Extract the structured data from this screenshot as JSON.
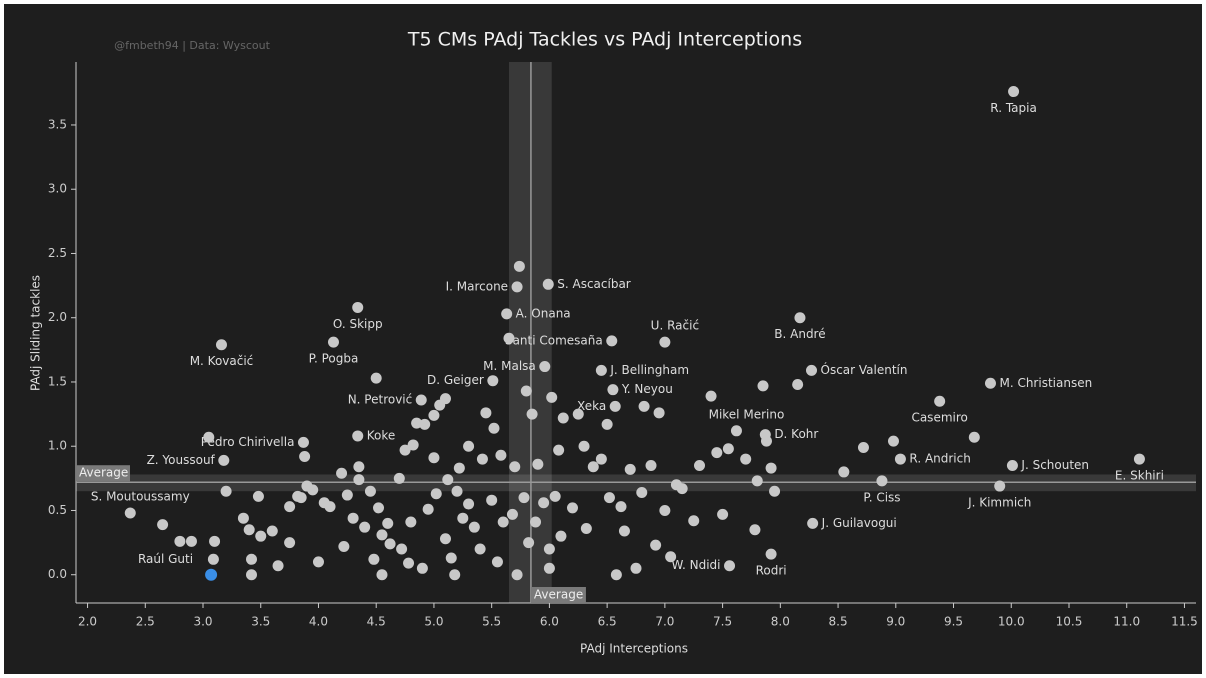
{
  "chart_data": {
    "type": "scatter",
    "title": "T5 CMs PAdj Tackles vs PAdj Interceptions",
    "subtitle": "@fmbeth94 | Data: Wyscout",
    "xlabel": "PAdj Interceptions",
    "ylabel": "PAdj Sliding tackles",
    "color": "#c8c8c8",
    "x": [
      10.02,
      5.72,
      5.99,
      5.63,
      4.34,
      4.13,
      3.16,
      7.0,
      8.17,
      6.54,
      5.96,
      6.45,
      8.27,
      9.82,
      6.55,
      5.51,
      6.57,
      7.62,
      9.38,
      4.89,
      3.87,
      4.34,
      7.87,
      3.18,
      9.04,
      10.01,
      11.11,
      8.88,
      9.9,
      2.37,
      8.28,
      7.56,
      7.92,
      2.65,
      2.8,
      2.9,
      3.05,
      3.1,
      3.09,
      3.2,
      3.35,
      3.4,
      3.42,
      3.42,
      3.48,
      3.5,
      3.6,
      3.65,
      3.75,
      3.75,
      3.82,
      3.85,
      3.88,
      3.9,
      3.95,
      4.0,
      4.05,
      4.1,
      4.2,
      4.22,
      4.25,
      4.3,
      4.35,
      4.35,
      4.4,
      4.45,
      4.5,
      4.48,
      4.52,
      4.55,
      4.55,
      4.6,
      4.62,
      4.7,
      4.72,
      4.75,
      4.78,
      4.8,
      4.82,
      4.85,
      4.9,
      4.92,
      4.95,
      5.0,
      5.0,
      5.02,
      5.05,
      5.1,
      5.1,
      5.12,
      5.15,
      5.18,
      5.2,
      5.22,
      5.25,
      5.3,
      5.3,
      5.35,
      5.4,
      5.42,
      5.45,
      5.5,
      5.52,
      5.55,
      5.58,
      5.6,
      5.65,
      5.68,
      5.7,
      5.72,
      5.74,
      5.78,
      5.8,
      5.82,
      5.85,
      5.88,
      5.9,
      5.95,
      6.0,
      6.0,
      6.02,
      6.05,
      6.08,
      6.1,
      6.12,
      6.2,
      6.25,
      6.3,
      6.32,
      6.38,
      6.45,
      6.5,
      6.52,
      6.58,
      6.62,
      6.65,
      6.7,
      6.75,
      6.8,
      6.82,
      6.88,
      6.92,
      6.95,
      7.0,
      7.05,
      7.1,
      7.15,
      7.25,
      7.3,
      7.4,
      7.45,
      7.5,
      7.55,
      7.7,
      7.78,
      7.8,
      7.85,
      7.88,
      7.92,
      7.95,
      8.15,
      8.55,
      8.72,
      8.98,
      9.68
    ],
    "values": [
      3.76,
      2.24,
      2.26,
      2.03,
      2.08,
      1.81,
      1.79,
      1.81,
      2.0,
      1.82,
      1.62,
      1.59,
      1.59,
      1.49,
      1.44,
      1.51,
      1.31,
      1.12,
      1.35,
      1.36,
      1.03,
      1.08,
      1.09,
      0.89,
      0.9,
      0.85,
      0.9,
      0.73,
      0.69,
      0.48,
      0.4,
      0.07,
      0.16,
      0.39,
      0.26,
      0.26,
      1.07,
      0.26,
      0.12,
      0.65,
      0.44,
      0.35,
      0.12,
      0.0,
      0.61,
      0.3,
      0.34,
      0.07,
      0.53,
      0.25,
      0.61,
      0.6,
      0.92,
      0.69,
      0.66,
      0.1,
      0.56,
      0.53,
      0.79,
      0.22,
      0.62,
      0.44,
      0.84,
      0.74,
      0.37,
      0.65,
      1.53,
      0.12,
      0.52,
      0.31,
      0.0,
      0.4,
      0.24,
      0.75,
      0.2,
      0.97,
      0.09,
      0.41,
      1.01,
      1.18,
      0.05,
      1.17,
      0.51,
      0.91,
      1.24,
      0.63,
      1.32,
      1.37,
      0.28,
      0.74,
      0.13,
      0.0,
      0.65,
      0.83,
      0.44,
      0.55,
      1.0,
      0.37,
      0.2,
      0.9,
      1.26,
      0.58,
      1.14,
      0.1,
      0.93,
      0.41,
      1.84,
      0.47,
      0.84,
      0.0,
      2.4,
      0.6,
      1.43,
      0.25,
      1.25,
      0.41,
      0.86,
      0.56,
      0.2,
      0.05,
      1.38,
      0.61,
      0.97,
      0.3,
      1.22,
      0.52,
      1.25,
      1.0,
      0.36,
      0.84,
      0.9,
      1.17,
      0.6,
      0.0,
      0.53,
      0.34,
      0.82,
      0.05,
      0.64,
      1.31,
      0.85,
      0.23,
      1.26,
      0.5,
      0.14,
      0.7,
      0.67,
      0.42,
      0.85,
      1.39,
      0.95,
      0.47,
      0.98,
      0.9,
      0.35,
      0.73,
      1.47,
      1.04,
      0.83,
      0.65,
      1.48,
      0.8,
      0.99,
      1.04,
      1.07
    ],
    "labels": [
      "R. Tapia",
      "I. Marcone",
      "S. Ascacíbar",
      "A. Onana",
      "O. Skipp",
      "P. Pogba",
      "M. Kovačić",
      "U. Račić",
      "B. André",
      "Santi Comesaña",
      "M. Malsa",
      "J. Bellingham",
      "Óscar Valentín",
      "M. Christiansen",
      "Y. Neyou",
      "D. Geiger",
      "Xeka",
      "Mikel Merino",
      "Casemiro",
      "N. Petrović",
      "Pedro Chirivella",
      "Koke",
      "D. Kohr",
      "Z. Youssouf",
      "R. Andrich",
      "J. Schouten",
      "E. Skhiri",
      "P. Ciss",
      "J. Kimmich",
      "S. Moutoussamy",
      "J. Guilavogui",
      "W. Ndidi",
      "Rodri",
      null,
      null,
      null,
      null,
      null,
      null,
      null,
      null,
      null,
      null,
      null,
      null,
      null,
      null,
      null,
      null,
      null,
      null,
      null,
      null,
      null,
      null,
      null,
      null,
      null,
      null,
      null,
      null,
      null,
      null,
      null,
      null,
      null,
      null,
      null,
      null,
      null,
      null,
      null,
      null,
      null,
      null,
      null,
      null,
      null,
      null,
      null,
      null,
      null,
      null,
      null,
      null,
      null,
      null,
      null,
      null,
      null,
      null,
      null,
      null,
      null,
      null,
      null,
      null,
      null,
      null,
      null,
      null,
      null,
      null,
      null,
      null,
      null,
      null,
      null,
      null,
      null,
      null,
      null,
      null,
      null,
      null,
      null,
      null,
      null,
      null,
      null,
      null,
      null,
      null,
      null,
      null,
      null,
      null,
      null,
      null,
      null,
      null,
      null,
      null,
      null,
      null,
      null,
      null,
      null,
      null,
      null,
      null,
      null,
      null,
      null,
      null,
      null,
      null,
      null,
      null,
      null,
      null,
      null,
      null,
      null,
      null,
      null,
      null,
      null,
      null,
      null,
      null,
      null,
      null,
      null,
      null
    ],
    "highlight": {
      "label": "Raúl Guti",
      "x": 3.07,
      "y": 0.0,
      "color": "#3a8ee6"
    },
    "average_label": "Average",
    "x_average": 5.84,
    "x_band": [
      5.65,
      6.02
    ],
    "y_average": 0.72,
    "y_band": [
      0.65,
      0.78
    ],
    "xlim": [
      1.9,
      11.6
    ],
    "ylim": [
      -0.22,
      3.99
    ],
    "xticks": [
      {
        "value": 2,
        "label": "2.0"
      },
      {
        "value": 2.5,
        "label": "2.5"
      },
      {
        "value": 3,
        "label": "3.0"
      },
      {
        "value": 3.5,
        "label": "3.5"
      },
      {
        "value": 4,
        "label": "4.0"
      },
      {
        "value": 4.5,
        "label": "4.5"
      },
      {
        "value": 5,
        "label": "5.0"
      },
      {
        "value": 5.5,
        "label": "5.5"
      },
      {
        "value": 6,
        "label": "6.0"
      },
      {
        "value": 6.5,
        "label": "6.5"
      },
      {
        "value": 7,
        "label": "7.0"
      },
      {
        "value": 7.5,
        "label": "7.5"
      },
      {
        "value": 8,
        "label": "8.0"
      },
      {
        "value": 8.5,
        "label": "8.5"
      },
      {
        "value": 9,
        "label": "9.0"
      },
      {
        "value": 9.5,
        "label": "9.5"
      },
      {
        "value": 10,
        "label": "10.0"
      },
      {
        "value": 10.5,
        "label": "10.5"
      },
      {
        "value": 11,
        "label": "11.0"
      },
      {
        "value": 11.5,
        "label": "11.5"
      }
    ],
    "yticks": [
      {
        "value": 0,
        "label": "0.0"
      },
      {
        "value": 0.5,
        "label": "0.5"
      },
      {
        "value": 1,
        "label": "1.0"
      },
      {
        "value": 1.5,
        "label": "1.5"
      },
      {
        "value": 2,
        "label": "2.0"
      },
      {
        "value": 2.5,
        "label": "2.5"
      },
      {
        "value": 3,
        "label": "3.0"
      },
      {
        "value": 3.5,
        "label": "3.5"
      }
    ]
  }
}
